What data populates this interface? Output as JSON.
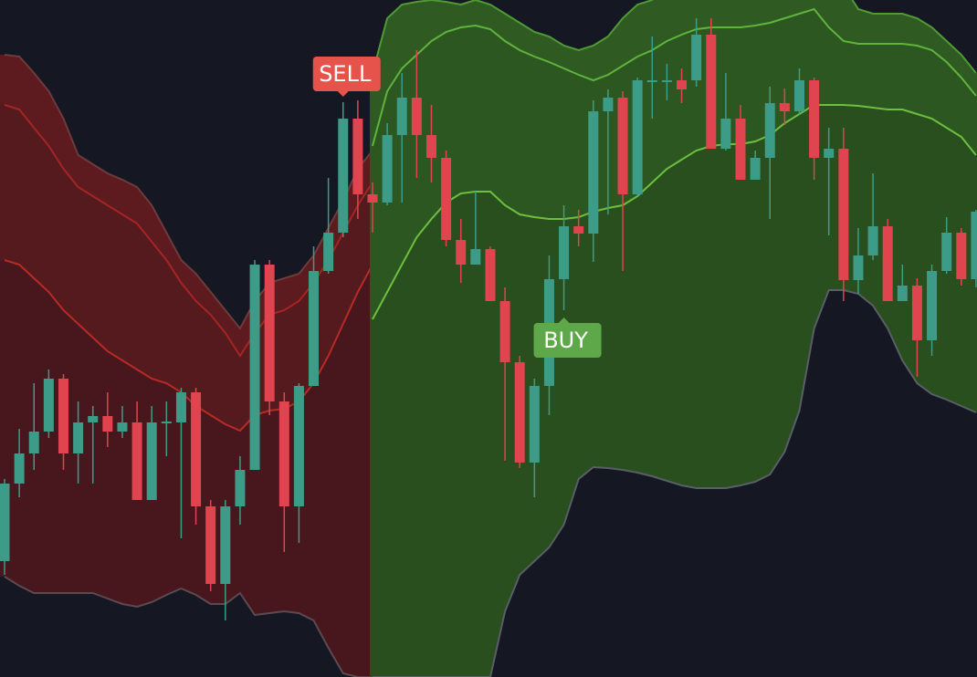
{
  "chart_data": {
    "type": "candlestick",
    "ylim": [
      0,
      742
    ],
    "up_color": "#3d9c88",
    "down_color": "#e0444f",
    "background": "#151822",
    "candles": {
      "open": [
        127,
        212,
        245,
        269,
        327,
        245,
        279,
        286,
        269,
        279,
        194,
        278,
        279,
        312,
        187,
        102,
        187,
        227,
        452,
        302,
        187,
        319,
        445,
        487,
        612,
        529,
        520,
        594,
        635,
        594,
        569,
        479,
        452,
        469,
        412,
        345,
        235,
        319,
        436,
        494,
        486,
        620,
        635,
        529,
        652,
        652,
        654,
        654,
        704,
        579,
        612,
        545,
        569,
        629,
        620,
        654,
        569,
        579,
        435,
        462,
        494,
        412,
        429,
        369,
        445,
        487,
        436
      ],
      "high": [
        217,
        272,
        322,
        337,
        332,
        302,
        297,
        312,
        297,
        302,
        297,
        302,
        317,
        317,
        194,
        194,
        242,
        457,
        457,
        312,
        322,
        472,
        547,
        630,
        632,
        542,
        607,
        662,
        687,
        627,
        577,
        502,
        532,
        472,
        427,
        352,
        327,
        462,
        517,
        512,
        632,
        644,
        642,
        657,
        702,
        672,
        667,
        722,
        722,
        662,
        627,
        577,
        647,
        645,
        667,
        657,
        602,
        602,
        492,
        552,
        502,
        452,
        437,
        452,
        504,
        492,
        512
      ],
      "low": [
        112,
        197,
        227,
        262,
        227,
        212,
        212,
        252,
        262,
        194,
        194,
        242,
        152,
        167,
        94,
        62,
        167,
        227,
        287,
        137,
        147,
        319,
        442,
        482,
        502,
        487,
        517,
        520,
        547,
        542,
        472,
        432,
        452,
        412,
        237,
        229,
        197,
        287,
        402,
        472,
        455,
        507,
        445,
        527,
        612,
        632,
        629,
        647,
        579,
        577,
        545,
        545,
        502,
        605,
        617,
        545,
        484,
        412,
        420,
        457,
        412,
        412,
        329,
        352,
        442,
        429,
        427
      ],
      "close": [
        212,
        245,
        269,
        327,
        245,
        279,
        286,
        269,
        279,
        194,
        279,
        280,
        312,
        187,
        102,
        187,
        227,
        452,
        302,
        187,
        319,
        445,
        487,
        612,
        529,
        520,
        594,
        635,
        594,
        569,
        479,
        452,
        469,
        412,
        345,
        235,
        319,
        436,
        494,
        486,
        620,
        635,
        529,
        654,
        654,
        654,
        644,
        704,
        579,
        612,
        545,
        569,
        629,
        620,
        654,
        569,
        579,
        435,
        462,
        494,
        412,
        429,
        369,
        445,
        487,
        436,
        510
      ]
    },
    "bands": [
      {
        "fills": [
          "#5e1b1f",
          "#4e191e",
          "#3d161d"
        ],
        "lines": [
          {
            "color": "#6e3a3c",
            "values": [
              682,
              680,
              662,
              642,
              612,
              572,
              562,
              552,
              545,
              537,
              517,
              487,
              457,
              442,
              422,
              402,
              382,
              412,
              432,
              437,
              442,
              462,
              492,
              522,
              557,
              577,
              null,
              null,
              null,
              null,
              null,
              null,
              null,
              null,
              null,
              null,
              null,
              null,
              null,
              null,
              null,
              null,
              null,
              null,
              null,
              null,
              null,
              null,
              null,
              null,
              null,
              null,
              null,
              null,
              null,
              null,
              null,
              null,
              null,
              null,
              null,
              null,
              null,
              null,
              null,
              null,
              null
            ]
          },
          {
            "color": "#a52424",
            "values": [
              627,
              622,
              602,
              582,
              557,
              537,
              527,
              517,
              507,
              497,
              477,
              457,
              432,
              412,
              397,
              377,
              352,
              377,
              397,
              402,
              412,
              432,
              457,
              487,
              517,
              542,
              null,
              null,
              null,
              null,
              null,
              null,
              null,
              null,
              null,
              null,
              null,
              null,
              null,
              null,
              null,
              null,
              null,
              null,
              null,
              null,
              null,
              null,
              null,
              null,
              null,
              null,
              null,
              null,
              null,
              null,
              null,
              null,
              null,
              null,
              null,
              null,
              null,
              null,
              null,
              null,
              null
            ]
          },
          {
            "color": "#b82a26",
            "values": [
              457,
              452,
              437,
              422,
              402,
              387,
              372,
              357,
              347,
              337,
              327,
              322,
              312,
              297,
              287,
              277,
              270,
              287,
              292,
              294,
              302,
              322,
              352,
              387,
              422,
              452,
              null,
              null,
              null,
              null,
              null,
              null,
              null,
              null,
              null,
              null,
              null,
              null,
              null,
              null,
              null,
              null,
              null,
              null,
              null,
              null,
              null,
              null,
              null,
              null,
              null,
              null,
              null,
              null,
              null,
              null,
              null,
              null,
              null,
              null,
              null,
              null,
              null,
              null,
              null,
              null,
              null
            ]
          },
          {
            "color": "#5c4a50",
            "values": [
              110,
              100,
              92,
              92,
              92,
              92,
              92,
              86,
              80,
              77,
              82,
              90,
              97,
              90,
              80,
              80,
              92,
              68,
              70,
              72,
              70,
              62,
              32,
              4,
              0,
              0,
              null,
              null,
              null,
              null,
              null,
              null,
              null,
              null,
              null,
              null,
              null,
              null,
              null,
              null,
              null,
              null,
              null,
              null,
              null,
              null,
              null,
              null,
              null,
              null,
              null,
              null,
              null,
              null,
              null,
              null,
              null,
              null,
              null,
              null,
              null,
              null,
              null,
              null,
              null,
              null,
              null
            ]
          }
        ]
      },
      {
        "fills": [
          "#2f5b23",
          "#2b5321",
          "#26481f"
        ],
        "lines": [
          {
            "color": "#4f9a34",
            "values": [
              null,
              null,
              null,
              null,
              null,
              null,
              null,
              null,
              null,
              null,
              null,
              null,
              null,
              null,
              null,
              null,
              null,
              null,
              null,
              null,
              null,
              null,
              null,
              null,
              null,
              662,
              722,
              737,
              740,
              742,
              740,
              737,
              742,
              737,
              727,
              717,
              707,
              702,
              692,
              687,
              692,
              702,
              722,
              737,
              742,
              762,
              772,
              772,
              772,
              772,
              772,
              772,
              762,
              757,
              752,
              747,
              762,
              757,
              732,
              727,
              727,
              727,
              722,
              712,
              697,
              682,
              662
            ]
          },
          {
            "color": "#5fb43c",
            "values": [
              null,
              null,
              null,
              null,
              null,
              null,
              null,
              null,
              null,
              null,
              null,
              null,
              null,
              null,
              null,
              null,
              null,
              null,
              null,
              null,
              null,
              null,
              null,
              null,
              null,
              582,
              642,
              667,
              682,
              697,
              707,
              712,
              714,
              710,
              697,
              687,
              680,
              674,
              667,
              660,
              654,
              660,
              670,
              680,
              687,
              697,
              704,
              710,
              712,
              712,
              712,
              714,
              717,
              722,
              727,
              732,
              712,
              697,
              694,
              694,
              694,
              694,
              692,
              687,
              674,
              657,
              637
            ]
          },
          {
            "color": "#6cc040",
            "values": [
              null,
              null,
              null,
              null,
              null,
              null,
              null,
              null,
              null,
              null,
              null,
              null,
              null,
              null,
              null,
              null,
              null,
              null,
              null,
              null,
              null,
              null,
              null,
              null,
              null,
              392,
              422,
              452,
              482,
              502,
              520,
              530,
              532,
              532,
              517,
              507,
              504,
              502,
              502,
              504,
              510,
              514,
              517,
              527,
              542,
              557,
              567,
              577,
              582,
              584,
              584,
              587,
              594,
              607,
              617,
              627,
              627,
              627,
              626,
              624,
              622,
              622,
              617,
              612,
              602,
              592,
              572
            ]
          },
          {
            "color": "#5a5e66",
            "values": [
              null,
              null,
              null,
              null,
              null,
              null,
              null,
              null,
              null,
              null,
              null,
              null,
              null,
              null,
              null,
              null,
              null,
              null,
              null,
              null,
              null,
              null,
              null,
              null,
              null,
              0,
              0,
              0,
              0,
              0,
              0,
              0,
              0,
              0,
              72,
              112,
              127,
              142,
              167,
              217,
              230,
              229,
              227,
              224,
              220,
              215,
              210,
              207,
              207,
              207,
              210,
              214,
              222,
              247,
              292,
              382,
              424,
              424,
              420,
              407,
              382,
              347,
              322,
              310,
              304,
              297,
              290
            ]
          }
        ]
      }
    ],
    "signals": [
      {
        "label": "SELL",
        "index": 23,
        "position": "above",
        "color": "#e5534b"
      },
      {
        "label": "BUY",
        "index": 38,
        "position": "below",
        "color": "#5ea84a"
      }
    ]
  }
}
